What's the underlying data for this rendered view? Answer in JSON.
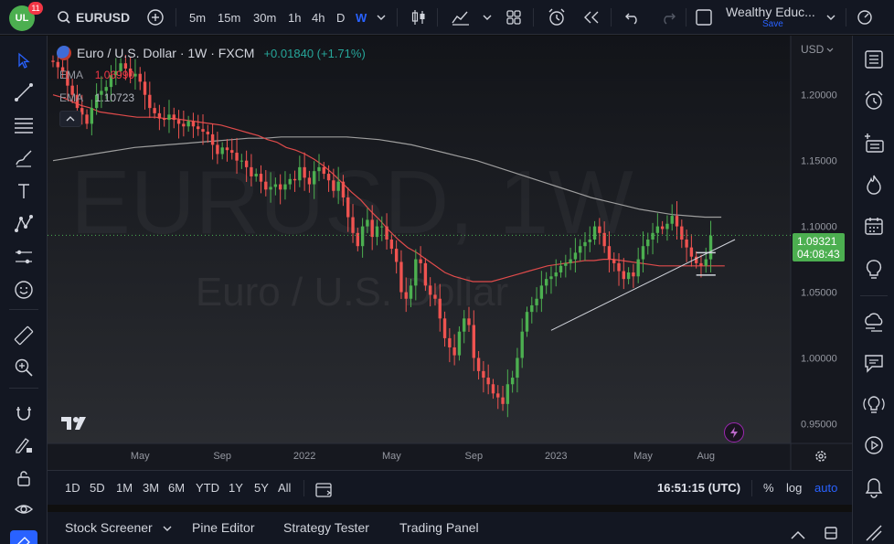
{
  "topbar": {
    "notif_count": "11",
    "symbol": "EURUSD",
    "intervals": [
      "5m",
      "15m",
      "30m",
      "1h",
      "4h",
      "D",
      "W"
    ],
    "active_interval": "W",
    "layout_name": "Wealthy Educ...",
    "save_label": "Save"
  },
  "legend": {
    "title": "Euro / U.S. Dollar · 1W · FXCM",
    "change": "+0.01840 (+1.71%)",
    "ema1_label": "EMA",
    "ema1_value": "1.06990",
    "ema2_label": "EMA",
    "ema2_value": "1.10723"
  },
  "watermark": {
    "symbol": "EURUSD, 1W",
    "name": "Euro / U.S. Dollar"
  },
  "price_axis": {
    "currency": "USD",
    "last_price": "1.09321",
    "countdown": "04:08:43"
  },
  "rangebar": {
    "ranges": [
      "1D",
      "5D",
      "1M",
      "3M",
      "6M",
      "YTD",
      "1Y",
      "5Y",
      "All"
    ],
    "time": "16:51:15 (UTC)",
    "percent_label": "%",
    "log_label": "log",
    "auto_label": "auto"
  },
  "bottom_panel": {
    "tabs": [
      "Stock Screener",
      "Pine Editor",
      "Strategy Tester",
      "Trading Panel"
    ]
  },
  "colors": {
    "up": "#26a69a",
    "up_bright": "#4caf50",
    "down": "#ef5350",
    "ema_fast": "#e04b4b",
    "ema_slow": "#9e9e9e",
    "price_label_bg": "#4caf50"
  },
  "chart_data": {
    "type": "candlestick",
    "timeframe": "1W",
    "y_range": [
      0.935,
      1.245
    ],
    "y_ticks": [
      1.2,
      1.15,
      1.1,
      1.05,
      1.0,
      0.95
    ],
    "y_tick_labels": [
      "1.20000",
      "1.15000",
      "1.10000",
      "1.05000",
      "1.00000",
      "0.95000"
    ],
    "x_labels": [
      "May",
      "Sep",
      "2022",
      "May",
      "Sep",
      "2023",
      "May",
      "Aug"
    ],
    "x_label_weeks": [
      18,
      35,
      52,
      70,
      87,
      104,
      122,
      135
    ],
    "week_range": [
      0,
      141
    ],
    "closes": [
      1.225,
      1.221,
      1.218,
      1.207,
      1.2,
      1.19,
      1.185,
      1.178,
      1.19,
      1.2,
      1.203,
      1.206,
      1.215,
      1.218,
      1.224,
      1.22,
      1.214,
      1.216,
      1.21,
      1.2,
      1.19,
      1.186,
      1.182,
      1.181,
      1.185,
      1.181,
      1.178,
      1.176,
      1.18,
      1.176,
      1.174,
      1.172,
      1.17,
      1.162,
      1.155,
      1.16,
      1.158,
      1.156,
      1.15,
      1.15,
      1.145,
      1.138,
      1.14,
      1.134,
      1.128,
      1.13,
      1.132,
      1.128,
      1.132,
      1.136,
      1.135,
      1.145,
      1.137,
      1.132,
      1.142,
      1.145,
      1.14,
      1.135,
      1.127,
      1.134,
      1.122,
      1.107,
      1.095,
      1.085,
      1.1,
      1.105,
      1.092,
      1.1,
      1.1,
      1.09,
      1.083,
      1.073,
      1.05,
      1.045,
      1.055,
      1.075,
      1.072,
      1.055,
      1.048,
      1.045,
      1.03,
      1.015,
      1.008,
      1.002,
      1.02,
      1.03,
      1.025,
      1.0,
      0.99,
      0.985,
      0.98,
      0.973,
      0.97,
      0.965,
      0.98,
      0.985,
      1.0,
      1.02,
      1.035,
      1.04,
      1.045,
      1.055,
      1.06,
      1.062,
      1.065,
      1.07,
      1.072,
      1.075,
      1.08,
      1.085,
      1.088,
      1.09,
      1.1,
      1.095,
      1.085,
      1.075,
      1.072,
      1.066,
      1.06,
      1.065,
      1.062,
      1.075,
      1.085,
      1.09,
      1.095,
      1.1,
      1.098,
      1.102,
      1.108,
      1.1,
      1.09,
      1.084,
      1.077,
      1.072,
      1.07,
      1.075,
      1.093
    ],
    "ema_fast": [
      1.2,
      1.198,
      1.195,
      1.192,
      1.19,
      1.187,
      1.186,
      1.185,
      1.184,
      1.183,
      1.183,
      1.183,
      1.182,
      1.182,
      1.181,
      1.18,
      1.179,
      1.178,
      1.177,
      1.175,
      1.173,
      1.171,
      1.169,
      1.166,
      1.164,
      1.16,
      1.158,
      1.155,
      1.151,
      1.146,
      1.14,
      1.133,
      1.126,
      1.12,
      1.112,
      1.105,
      1.097,
      1.09,
      1.084,
      1.08,
      1.075,
      1.07,
      1.065,
      1.062,
      1.06,
      1.058,
      1.058,
      1.058,
      1.06,
      1.062,
      1.064,
      1.066,
      1.068,
      1.07,
      1.071,
      1.072,
      1.073,
      1.074,
      1.074,
      1.075,
      1.075,
      1.074,
      1.073,
      1.072,
      1.071,
      1.07,
      1.07,
      1.07,
      1.07,
      1.07,
      1.07,
      1.07,
      1.07
    ],
    "ema_slow": [
      1.15,
      1.152,
      1.154,
      1.156,
      1.158,
      1.16,
      1.161,
      1.162,
      1.163,
      1.164,
      1.165,
      1.166,
      1.167,
      1.167,
      1.168,
      1.168,
      1.168,
      1.168,
      1.168,
      1.167,
      1.166,
      1.164,
      1.162,
      1.159,
      1.156,
      1.153,
      1.15,
      1.146,
      1.142,
      1.138,
      1.134,
      1.13,
      1.126,
      1.122,
      1.119,
      1.116,
      1.113,
      1.111,
      1.109,
      1.108,
      1.107,
      1.107
    ],
    "last_price": 1.09321,
    "trendline": {
      "from": [
        103,
        1.021
      ],
      "to": [
        141,
        1.09
      ]
    },
    "horizontal_lines": [
      1.08,
      1.063
    ]
  }
}
